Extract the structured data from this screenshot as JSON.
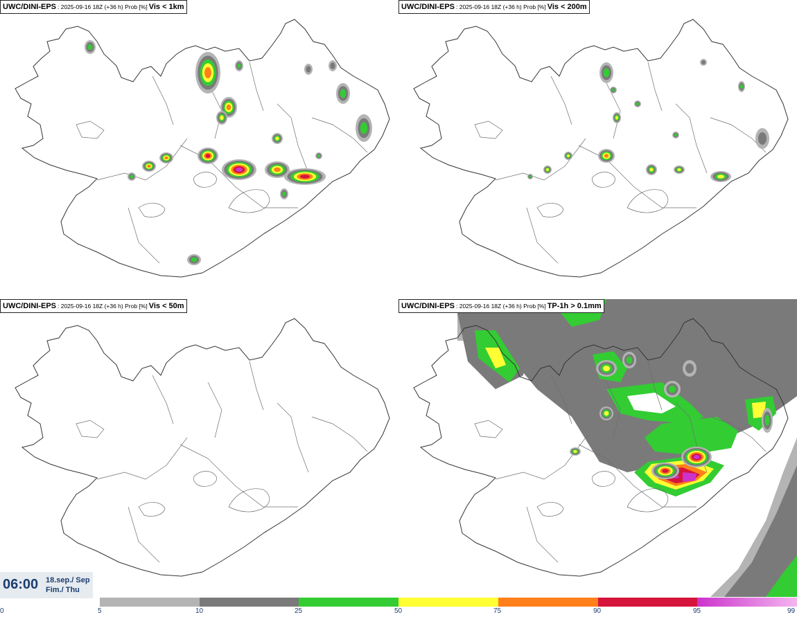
{
  "panels": [
    {
      "source": "UWC/DINI-EPS",
      "meta": ": 2025-09-16 18Z (+36 h) Prob [%]",
      "variable": "Vis < 1km"
    },
    {
      "source": "UWC/DINI-EPS",
      "meta": ": 2025-09-16 18Z (+36 h) Prob [%]",
      "variable": "Vis < 200m"
    },
    {
      "source": "UWC/DINI-EPS",
      "meta": ": 2025-09-16 18Z (+36 h) Prob [%]",
      "variable": "Vis < 50m"
    },
    {
      "source": "UWC/DINI-EPS",
      "meta": ": 2025-09-16 18Z (+36 h) Prob [%]",
      "variable": "TP-1h > 0.1mm"
    }
  ],
  "valid_time": {
    "clock": "06:00",
    "date_line1": "18.sep./ Sep",
    "date_line2": "Fim./ Thu"
  },
  "colorbar": {
    "colors": [
      "#b4b4b4",
      "#7a7a7a",
      "#33cc33",
      "#ffff33",
      "#ff7f1a",
      "#d6153c",
      "#cc33cc",
      "#f4b6f0"
    ],
    "ticks": [
      "0",
      "5",
      "10",
      "25",
      "50",
      "75",
      "90",
      "95",
      "99"
    ]
  },
  "map_colors": {
    "coast": "#333333",
    "border": "#6e6e6e"
  }
}
